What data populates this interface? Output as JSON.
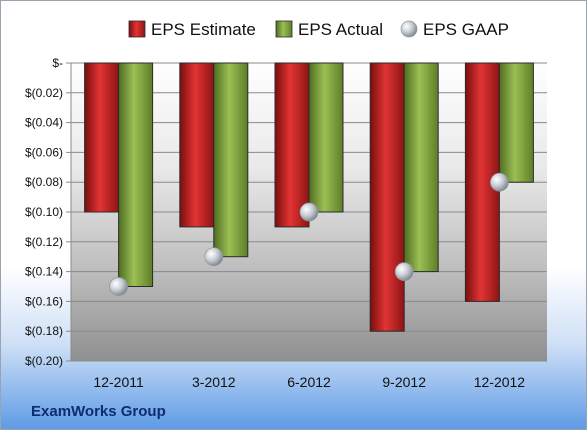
{
  "company": "ExamWorks Group",
  "chart_data": {
    "type": "bar",
    "categories": [
      "12-2011",
      "3-2012",
      "6-2012",
      "9-2012",
      "12-2012"
    ],
    "series": [
      {
        "name": "EPS Estimate",
        "values": [
          -0.1,
          -0.11,
          -0.11,
          -0.18,
          -0.16
        ],
        "color": "#cc1f1f",
        "kind": "bar"
      },
      {
        "name": "EPS Actual",
        "values": [
          -0.15,
          -0.13,
          -0.1,
          -0.14,
          -0.08
        ],
        "color": "#7ea03a",
        "kind": "bar"
      },
      {
        "name": "EPS GAAP",
        "values": [
          -0.15,
          -0.13,
          -0.1,
          -0.14,
          -0.08
        ],
        "color": "#b9c0c8",
        "kind": "marker"
      }
    ],
    "ylim": [
      -0.2,
      0
    ],
    "yticks": [
      0,
      -0.02,
      -0.04,
      -0.06,
      -0.08,
      -0.1,
      -0.12,
      -0.14,
      -0.16,
      -0.18,
      -0.2
    ],
    "ytick_labels": [
      "$-",
      "$(0.02)",
      "$(0.04)",
      "$(0.06)",
      "$(0.08)",
      "$(0.10)",
      "$(0.12)",
      "$(0.14)",
      "$(0.16)",
      "$(0.18)",
      "$(0.20)"
    ],
    "legend_position": "top",
    "grid": true
  }
}
